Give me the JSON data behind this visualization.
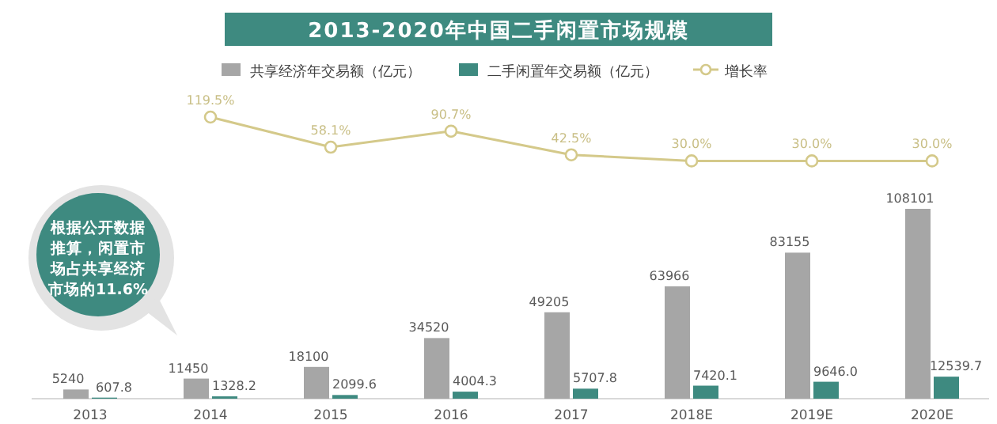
{
  "chart_data": [
    {
      "type": "bar",
      "categories": [
        "2013",
        "2014",
        "2015",
        "2016",
        "2017",
        "2018E",
        "2019E",
        "2020E"
      ],
      "series": [
        {
          "name": "共享经济年交易额（亿元）",
          "color": "#a6a6a6",
          "values": [
            5240,
            11450,
            18100,
            34520,
            49205,
            63966,
            83155,
            108101
          ]
        },
        {
          "name": "二手闲置年交易额（亿元）",
          "color": "#3e8a80",
          "values": [
            607.8,
            1328.2,
            2099.6,
            4004.3,
            5707.8,
            7420.1,
            9646.0,
            12539.7
          ],
          "value_labels": [
            "607.8",
            "1328.2",
            "2099.6",
            "4004.3",
            "5707.8",
            "7420.1",
            "9646.0",
            "12539.7"
          ]
        }
      ],
      "data_labels": true,
      "legend": "top",
      "annotations": [
        "根据公开数据推算，闲置市场占共享经济市场的11.6%"
      ]
    },
    {
      "type": "line",
      "title": "2013-2020年中国二手闲置市场规模",
      "categories": [
        null,
        null,
        null,
        null,
        null,
        null,
        null,
        null
      ],
      "series": [
        {
          "name": "增长率",
          "color": "#d4c98a",
          "values": [
            null,
            119.5,
            58.1,
            90.7,
            42.5,
            30.0,
            30.0,
            30.0
          ],
          "value_labels": [
            null,
            "119.5%",
            "58.1%",
            "90.7%",
            "42.5%",
            "30.0%",
            "30.0%",
            "30.0%"
          ]
        }
      ],
      "marker": "circle",
      "data_labels": true,
      "legend": "top right"
    }
  ]
}
